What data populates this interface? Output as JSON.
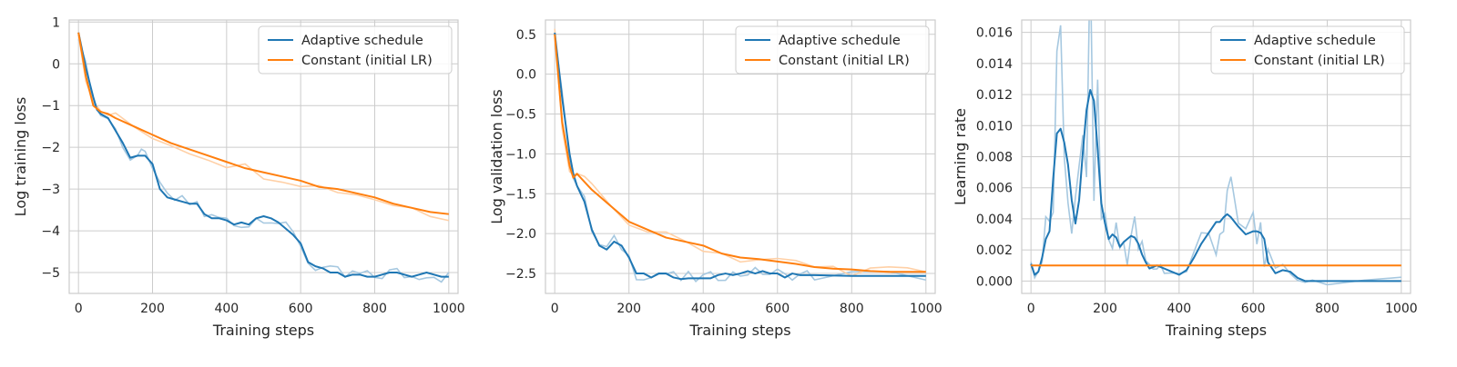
{
  "colors": {
    "adaptive": "#1f77b4",
    "constant": "#ff7f0e",
    "adaptive_raw": "#a6c8e0",
    "constant_raw": "#ffd0a6",
    "grid": "#cccccc"
  },
  "chart_data": [
    {
      "type": "line",
      "xlabel": "Training steps",
      "ylabel": "Log training loss",
      "xlim": [
        -25,
        1025
      ],
      "ylim": [
        -5.5,
        1.05
      ],
      "xticks": [
        0,
        200,
        400,
        600,
        800,
        1000
      ],
      "yticks": [
        1,
        0,
        -1,
        -2,
        -3,
        -4,
        -5
      ],
      "ytick_labels": [
        "1",
        "0",
        "−1",
        "−2",
        "−3",
        "−4",
        "−5"
      ],
      "grid": true,
      "legend_position": "top-right",
      "series": [
        {
          "name": "Adaptive schedule",
          "color_key": "adaptive",
          "x": [
            0,
            20,
            40,
            50,
            60,
            80,
            100,
            120,
            140,
            160,
            170,
            180,
            200,
            220,
            240,
            260,
            280,
            300,
            320,
            340,
            360,
            380,
            400,
            420,
            440,
            460,
            480,
            500,
            520,
            540,
            560,
            580,
            600,
            620,
            640,
            660,
            680,
            700,
            720,
            740,
            760,
            780,
            800,
            820,
            840,
            860,
            880,
            900,
            920,
            940,
            960,
            980,
            1000
          ],
          "y": [
            0.75,
            -0.1,
            -0.8,
            -1.1,
            -1.2,
            -1.3,
            -1.6,
            -1.9,
            -2.25,
            -2.2,
            -2.2,
            -2.2,
            -2.4,
            -3.0,
            -3.2,
            -3.25,
            -3.3,
            -3.35,
            -3.35,
            -3.6,
            -3.7,
            -3.7,
            -3.75,
            -3.85,
            -3.8,
            -3.85,
            -3.7,
            -3.65,
            -3.7,
            -3.8,
            -3.95,
            -4.1,
            -4.3,
            -4.75,
            -4.85,
            -4.9,
            -5.0,
            -5.0,
            -5.1,
            -5.05,
            -5.05,
            -5.1,
            -5.1,
            -5.05,
            -5.0,
            -5.0,
            -5.05,
            -5.1,
            -5.05,
            -5.0,
            -5.05,
            -5.1,
            -5.1
          ]
        },
        {
          "name": "Constant (initial LR)",
          "color_key": "constant",
          "x": [
            0,
            20,
            40,
            60,
            80,
            100,
            150,
            200,
            250,
            300,
            350,
            400,
            450,
            500,
            550,
            600,
            650,
            700,
            750,
            800,
            850,
            900,
            950,
            1000
          ],
          "y": [
            0.75,
            -0.3,
            -1.0,
            -1.15,
            -1.2,
            -1.3,
            -1.5,
            -1.7,
            -1.9,
            -2.05,
            -2.2,
            -2.35,
            -2.5,
            -2.6,
            -2.7,
            -2.8,
            -2.95,
            -3.0,
            -3.1,
            -3.2,
            -3.35,
            -3.45,
            -3.55,
            -3.6
          ]
        }
      ]
    },
    {
      "type": "line",
      "xlabel": "Training steps",
      "ylabel": "Log validation loss",
      "xlim": [
        -25,
        1025
      ],
      "ylim": [
        -2.75,
        0.68
      ],
      "xticks": [
        0,
        200,
        400,
        600,
        800,
        1000
      ],
      "yticks": [
        0.5,
        0.0,
        -0.5,
        -1.0,
        -1.5,
        -2.0,
        -2.5
      ],
      "ytick_labels": [
        "0.5",
        "0.0",
        "−0.5",
        "−1.0",
        "−1.5",
        "−2.0",
        "−2.5"
      ],
      "grid": true,
      "legend_position": "top-right",
      "series": [
        {
          "name": "Adaptive schedule",
          "color_key": "adaptive",
          "x": [
            0,
            20,
            40,
            50,
            60,
            80,
            100,
            120,
            140,
            160,
            180,
            200,
            220,
            240,
            260,
            280,
            300,
            320,
            340,
            360,
            380,
            400,
            420,
            440,
            460,
            480,
            500,
            520,
            540,
            560,
            580,
            600,
            620,
            640,
            660,
            680,
            700,
            800,
            900,
            1000
          ],
          "y": [
            0.52,
            -0.3,
            -1.0,
            -1.25,
            -1.4,
            -1.6,
            -1.95,
            -2.15,
            -2.2,
            -2.1,
            -2.15,
            -2.3,
            -2.5,
            -2.5,
            -2.55,
            -2.5,
            -2.5,
            -2.55,
            -2.57,
            -2.56,
            -2.56,
            -2.56,
            -2.56,
            -2.52,
            -2.5,
            -2.52,
            -2.5,
            -2.47,
            -2.5,
            -2.47,
            -2.5,
            -2.5,
            -2.55,
            -2.5,
            -2.52,
            -2.52,
            -2.52,
            -2.53,
            -2.53,
            -2.53
          ]
        },
        {
          "name": "Constant (initial LR)",
          "color_key": "constant",
          "x": [
            0,
            20,
            40,
            50,
            60,
            80,
            100,
            150,
            200,
            250,
            300,
            350,
            400,
            450,
            500,
            550,
            600,
            650,
            700,
            750,
            800,
            850,
            900,
            950,
            1000
          ],
          "y": [
            0.5,
            -0.6,
            -1.15,
            -1.3,
            -1.25,
            -1.35,
            -1.45,
            -1.65,
            -1.85,
            -1.95,
            -2.05,
            -2.1,
            -2.15,
            -2.25,
            -2.3,
            -2.32,
            -2.35,
            -2.38,
            -2.42,
            -2.44,
            -2.45,
            -2.47,
            -2.48,
            -2.48,
            -2.48
          ]
        }
      ]
    },
    {
      "type": "line",
      "xlabel": "Training steps",
      "ylabel": "Learning rate",
      "xlim": [
        -25,
        1025
      ],
      "ylim": [
        -0.0008,
        0.0168
      ],
      "xticks": [
        0,
        200,
        400,
        600,
        800,
        1000
      ],
      "yticks": [
        0.016,
        0.014,
        0.012,
        0.01,
        0.008,
        0.006,
        0.004,
        0.002,
        0.0
      ],
      "ytick_labels": [
        "0.016",
        "0.014",
        "0.012",
        "0.010",
        "0.008",
        "0.006",
        "0.004",
        "0.002",
        "0.000"
      ],
      "grid": true,
      "legend_position": "top-right",
      "series": [
        {
          "name": "Adaptive schedule",
          "color_key": "adaptive",
          "x": [
            0,
            10,
            20,
            30,
            40,
            50,
            60,
            70,
            80,
            90,
            100,
            110,
            120,
            130,
            140,
            150,
            160,
            170,
            180,
            190,
            200,
            210,
            220,
            230,
            240,
            250,
            260,
            270,
            280,
            290,
            300,
            310,
            320,
            330,
            340,
            350,
            360,
            380,
            400,
            420,
            440,
            460,
            480,
            500,
            510,
            520,
            530,
            540,
            560,
            580,
            600,
            610,
            620,
            630,
            640,
            660,
            680,
            700,
            720,
            740,
            760,
            800,
            900,
            1000
          ],
          "y": [
            0.0011,
            0.0004,
            0.0006,
            0.0015,
            0.0027,
            0.0032,
            0.0066,
            0.0095,
            0.0098,
            0.0089,
            0.0075,
            0.0052,
            0.0037,
            0.0052,
            0.0083,
            0.011,
            0.0123,
            0.0116,
            0.0085,
            0.005,
            0.0037,
            0.0027,
            0.003,
            0.0028,
            0.0022,
            0.0025,
            0.0027,
            0.0029,
            0.0028,
            0.0024,
            0.0017,
            0.0012,
            0.0008,
            0.0009,
            0.001,
            0.0009,
            0.0008,
            0.0006,
            0.0004,
            0.0007,
            0.0015,
            0.0024,
            0.0031,
            0.0038,
            0.0038,
            0.0041,
            0.0043,
            0.0041,
            0.0035,
            0.003,
            0.0032,
            0.0032,
            0.0031,
            0.0027,
            0.0012,
            0.0005,
            0.0007,
            0.0006,
            0.0002,
            0.0,
            0.0,
            0.0,
            0.0,
            0.0
          ]
        },
        {
          "name": "Constant (initial LR)",
          "color_key": "constant",
          "x": [
            0,
            1000
          ],
          "y": [
            0.001,
            0.001
          ]
        }
      ]
    }
  ]
}
